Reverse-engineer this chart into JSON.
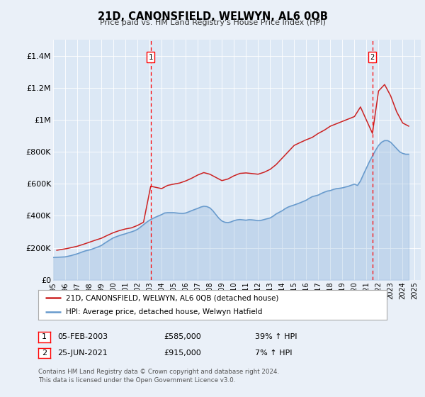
{
  "title": "21D, CANONSFIELD, WELWYN, AL6 0QB",
  "subtitle": "Price paid vs. HM Land Registry's House Price Index (HPI)",
  "background_color": "#eaf0f8",
  "plot_bg_color": "#dce8f5",
  "ylim": [
    0,
    1500000
  ],
  "yticks": [
    0,
    200000,
    400000,
    600000,
    800000,
    1000000,
    1200000,
    1400000
  ],
  "ytick_labels": [
    "£0",
    "£200K",
    "£400K",
    "£600K",
    "£800K",
    "£1M",
    "£1.2M",
    "£1.4M"
  ],
  "hpi_line_color": "#6699cc",
  "price_line_color": "#cc2222",
  "marker1_x": 2003.096,
  "marker1_price": 585000,
  "marker2_x": 2021.49,
  "marker2_price": 915000,
  "legend_label1": "21D, CANONSFIELD, WELWYN, AL6 0QB (detached house)",
  "legend_label2": "HPI: Average price, detached house, Welwyn Hatfield",
  "table_row1": [
    "1",
    "05-FEB-2003",
    "£585,000",
    "39% ↑ HPI"
  ],
  "table_row2": [
    "2",
    "25-JUN-2021",
    "£915,000",
    "7% ↑ HPI"
  ],
  "footer": "Contains HM Land Registry data © Crown copyright and database right 2024.\nThis data is licensed under the Open Government Licence v3.0.",
  "hpi_data_x": [
    1995.0,
    1995.25,
    1995.5,
    1995.75,
    1996.0,
    1996.25,
    1996.5,
    1996.75,
    1997.0,
    1997.25,
    1997.5,
    1997.75,
    1998.0,
    1998.25,
    1998.5,
    1998.75,
    1999.0,
    1999.25,
    1999.5,
    1999.75,
    2000.0,
    2000.25,
    2000.5,
    2000.75,
    2001.0,
    2001.25,
    2001.5,
    2001.75,
    2002.0,
    2002.25,
    2002.5,
    2002.75,
    2003.0,
    2003.25,
    2003.5,
    2003.75,
    2004.0,
    2004.25,
    2004.5,
    2004.75,
    2005.0,
    2005.25,
    2005.5,
    2005.75,
    2006.0,
    2006.25,
    2006.5,
    2006.75,
    2007.0,
    2007.25,
    2007.5,
    2007.75,
    2008.0,
    2008.25,
    2008.5,
    2008.75,
    2009.0,
    2009.25,
    2009.5,
    2009.75,
    2010.0,
    2010.25,
    2010.5,
    2010.75,
    2011.0,
    2011.25,
    2011.5,
    2011.75,
    2012.0,
    2012.25,
    2012.5,
    2012.75,
    2013.0,
    2013.25,
    2013.5,
    2013.75,
    2014.0,
    2014.25,
    2014.5,
    2014.75,
    2015.0,
    2015.25,
    2015.5,
    2015.75,
    2016.0,
    2016.25,
    2016.5,
    2016.75,
    2017.0,
    2017.25,
    2017.5,
    2017.75,
    2018.0,
    2018.25,
    2018.5,
    2018.75,
    2019.0,
    2019.25,
    2019.5,
    2019.75,
    2020.0,
    2020.25,
    2020.5,
    2020.75,
    2021.0,
    2021.25,
    2021.5,
    2021.75,
    2022.0,
    2022.25,
    2022.5,
    2022.75,
    2023.0,
    2023.25,
    2023.5,
    2023.75,
    2024.0,
    2024.25,
    2024.5
  ],
  "hpi_data_y": [
    140000,
    141000,
    142000,
    143000,
    144000,
    148000,
    152000,
    158000,
    163000,
    170000,
    177000,
    183000,
    187000,
    193000,
    200000,
    207000,
    215000,
    228000,
    240000,
    252000,
    263000,
    270000,
    277000,
    283000,
    288000,
    295000,
    300000,
    307000,
    316000,
    330000,
    345000,
    360000,
    373000,
    383000,
    392000,
    400000,
    408000,
    418000,
    420000,
    420000,
    420000,
    418000,
    416000,
    415000,
    418000,
    425000,
    433000,
    440000,
    447000,
    455000,
    460000,
    458000,
    450000,
    432000,
    408000,
    385000,
    368000,
    360000,
    358000,
    362000,
    370000,
    375000,
    377000,
    375000,
    373000,
    376000,
    375000,
    373000,
    370000,
    372000,
    377000,
    382000,
    387000,
    398000,
    412000,
    422000,
    432000,
    445000,
    455000,
    462000,
    468000,
    475000,
    482000,
    490000,
    498000,
    510000,
    520000,
    525000,
    530000,
    540000,
    548000,
    555000,
    558000,
    565000,
    570000,
    572000,
    575000,
    580000,
    585000,
    592000,
    598000,
    590000,
    618000,
    660000,
    700000,
    740000,
    775000,
    810000,
    840000,
    860000,
    870000,
    870000,
    860000,
    840000,
    820000,
    800000,
    790000,
    785000,
    785000
  ],
  "price_data_x": [
    1995.3,
    1996.1,
    1997.0,
    1997.5,
    1998.0,
    1998.5,
    1999.0,
    1999.5,
    2000.0,
    2000.5,
    2001.0,
    2001.5,
    2002.0,
    2002.5,
    2003.096,
    2004.0,
    2004.5,
    2005.0,
    2005.5,
    2006.0,
    2006.5,
    2007.0,
    2007.5,
    2008.0,
    2009.0,
    2009.5,
    2010.0,
    2010.5,
    2011.0,
    2012.0,
    2012.5,
    2013.0,
    2013.5,
    2014.0,
    2014.5,
    2015.0,
    2015.5,
    2016.0,
    2016.5,
    2017.0,
    2017.5,
    2018.0,
    2018.5,
    2019.0,
    2019.5,
    2020.0,
    2020.5,
    2021.49,
    2022.0,
    2022.5,
    2023.0,
    2023.5,
    2024.0,
    2024.5
  ],
  "price_data_y": [
    185000,
    195000,
    210000,
    222000,
    235000,
    248000,
    260000,
    278000,
    295000,
    308000,
    318000,
    325000,
    340000,
    360000,
    585000,
    570000,
    590000,
    598000,
    605000,
    618000,
    635000,
    655000,
    670000,
    660000,
    620000,
    630000,
    650000,
    665000,
    668000,
    660000,
    672000,
    690000,
    720000,
    760000,
    800000,
    840000,
    858000,
    875000,
    890000,
    915000,
    935000,
    960000,
    975000,
    990000,
    1005000,
    1020000,
    1080000,
    915000,
    1180000,
    1220000,
    1150000,
    1050000,
    980000,
    960000
  ]
}
